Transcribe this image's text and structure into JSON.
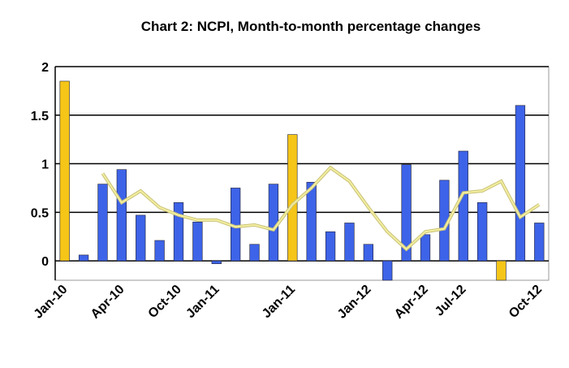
{
  "chart_data": {
    "type": "bar",
    "title": "Chart 2: NCPI, Month-to-month percentage changes",
    "categories": [
      "Jan-10",
      null,
      null,
      "Apr-10",
      null,
      null,
      "Oct-10",
      null,
      "Jan-11",
      null,
      null,
      null,
      "Jan-11",
      null,
      null,
      null,
      "Jan-12",
      null,
      null,
      "Apr-12",
      null,
      "Jul-12",
      null,
      null,
      null,
      "Oct-12"
    ],
    "series": [
      {
        "type": "bar",
        "colors": [
          "#f5c518",
          "#3d63e8",
          "#3d63e8",
          "#3d63e8",
          "#3d63e8",
          "#3d63e8",
          "#3d63e8",
          "#3d63e8",
          "#3d63e8",
          "#3d63e8",
          "#3d63e8",
          "#3d63e8",
          "#f5c518",
          "#3d63e8",
          "#3d63e8",
          "#3d63e8",
          "#3d63e8",
          "#3d63e8",
          "#3d63e8",
          "#3d63e8",
          "#3d63e8",
          "#3d63e8",
          "#3d63e8",
          "#f5c518",
          "#3d63e8",
          "#3d63e8"
        ],
        "values": [
          1.85,
          0.06,
          0.79,
          0.94,
          0.47,
          0.21,
          0.6,
          0.4,
          -0.03,
          0.75,
          0.17,
          0.79,
          1.3,
          0.81,
          0.3,
          0.39,
          0.17,
          -0.2,
          0.99,
          0.27,
          0.83,
          1.13,
          0.6,
          -0.2,
          1.6,
          0.39
        ]
      },
      {
        "type": "line",
        "color": "#f2ee9e",
        "values": [
          null,
          null,
          0.9,
          0.6,
          0.72,
          0.55,
          0.47,
          0.42,
          0.42,
          0.35,
          0.37,
          0.32,
          0.58,
          0.75,
          0.96,
          0.82,
          0.55,
          0.3,
          0.12,
          0.3,
          0.33,
          0.7,
          0.72,
          0.82,
          0.45,
          0.58
        ]
      }
    ],
    "ylim": [
      -0.2,
      2
    ],
    "yticks": [
      0,
      0.5,
      1,
      1.5,
      2
    ],
    "grid": true
  }
}
